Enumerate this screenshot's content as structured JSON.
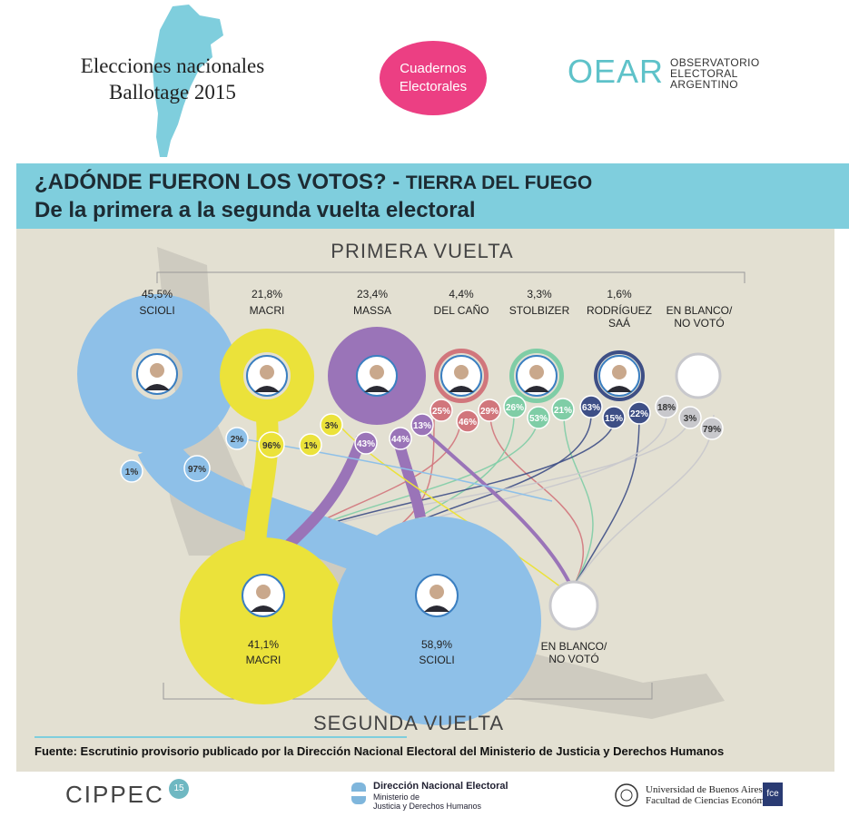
{
  "header": {
    "title_line1": "Elecciones nacionales",
    "title_line2": "Ballotage 2015",
    "badge_line1": "Cuadernos",
    "badge_line2": "Electorales",
    "oear_mark": "OEAR",
    "oear_line1": "OBSERVATORIO",
    "oear_line2": "ELECTORAL",
    "oear_line3": "ARGENTINO"
  },
  "banner": {
    "line1_main": "¿ADÓNDE FUERON LOS VOTOS? - ",
    "line1_sub": "TIERRA DEL FUEGO",
    "line2": "De la primera a la segunda vuelta electoral"
  },
  "colors": {
    "scioli": "#8ec0e8",
    "macri": "#ebe23a",
    "massa": "#9a74b8",
    "delcano": "#d1767c",
    "stolbizer": "#7fcda6",
    "rodriguez_saa": "#3e4f86",
    "blanco": "#c8c8cc",
    "banner": "#7fcedd",
    "badge": "#ec3f83"
  },
  "chart_data": {
    "type": "flow",
    "top_label": "PRIMERA VUELTA",
    "bottom_label": "SEGUNDA VUELTA",
    "first_round": [
      {
        "name": "SCIOLI",
        "name2": "",
        "share": "45,5%"
      },
      {
        "name": "MACRI",
        "name2": "",
        "share": "21,8%"
      },
      {
        "name": "MASSA",
        "name2": "",
        "share": "23,4%"
      },
      {
        "name": "DEL CAÑO",
        "name2": "",
        "share": "4,4%"
      },
      {
        "name": "STOLBIZER",
        "name2": "",
        "share": "3,3%"
      },
      {
        "name": "RODRÍGUEZ",
        "name2": "SAÁ",
        "share": "1,6%"
      },
      {
        "name": "EN BLANCO/",
        "name2": "NO VOTÓ",
        "share": ""
      }
    ],
    "second_round": [
      {
        "name": "MACRI",
        "share": "41,1%"
      },
      {
        "name": "SCIOLI",
        "share": "58,9%"
      },
      {
        "name": "EN BLANCO/",
        "name2": "NO VOTÓ",
        "share": ""
      }
    ],
    "flows": [
      {
        "from": "SCIOLI",
        "to_scioli": "97%",
        "to_macri": "2%",
        "to_blanco": "1%"
      },
      {
        "from": "MACRI",
        "to_scioli": "1%",
        "to_macri": "96%",
        "to_blanco": "3%"
      },
      {
        "from": "MASSA",
        "to_scioli": "44%",
        "to_macri": "43%",
        "to_blanco": "13%"
      },
      {
        "from": "DEL CAÑO",
        "to_scioli": "46%",
        "to_macri": "25%",
        "to_blanco": "29%"
      },
      {
        "from": "STOLBIZER",
        "to_scioli": "53%",
        "to_macri": "26%",
        "to_blanco": "21%"
      },
      {
        "from": "RODRÍGUEZ SAÁ",
        "to_scioli": "15%",
        "to_macri": "63%",
        "to_blanco": "22%"
      },
      {
        "from": "EN BLANCO/NO VOTÓ",
        "to_scioli": "3%",
        "to_macri": "18%",
        "to_blanco": "79%"
      }
    ]
  },
  "source": "Fuente: Escrutinio provisorio publicado por la Dirección Nacional Electoral del Ministerio de Justicia y Derechos Humanos",
  "footer": {
    "cippec": "CIPPEC",
    "cippec_badge": "15",
    "dine_name": "Dirección Nacional Electoral",
    "dine_min1": "Ministerio de",
    "dine_min2": "Justicia y Derechos Humanos",
    "uba_line1": "Universidad de Buenos Aires",
    "uba_line2": "Facultad de Ciencias Económicas",
    "fce": "fce"
  }
}
